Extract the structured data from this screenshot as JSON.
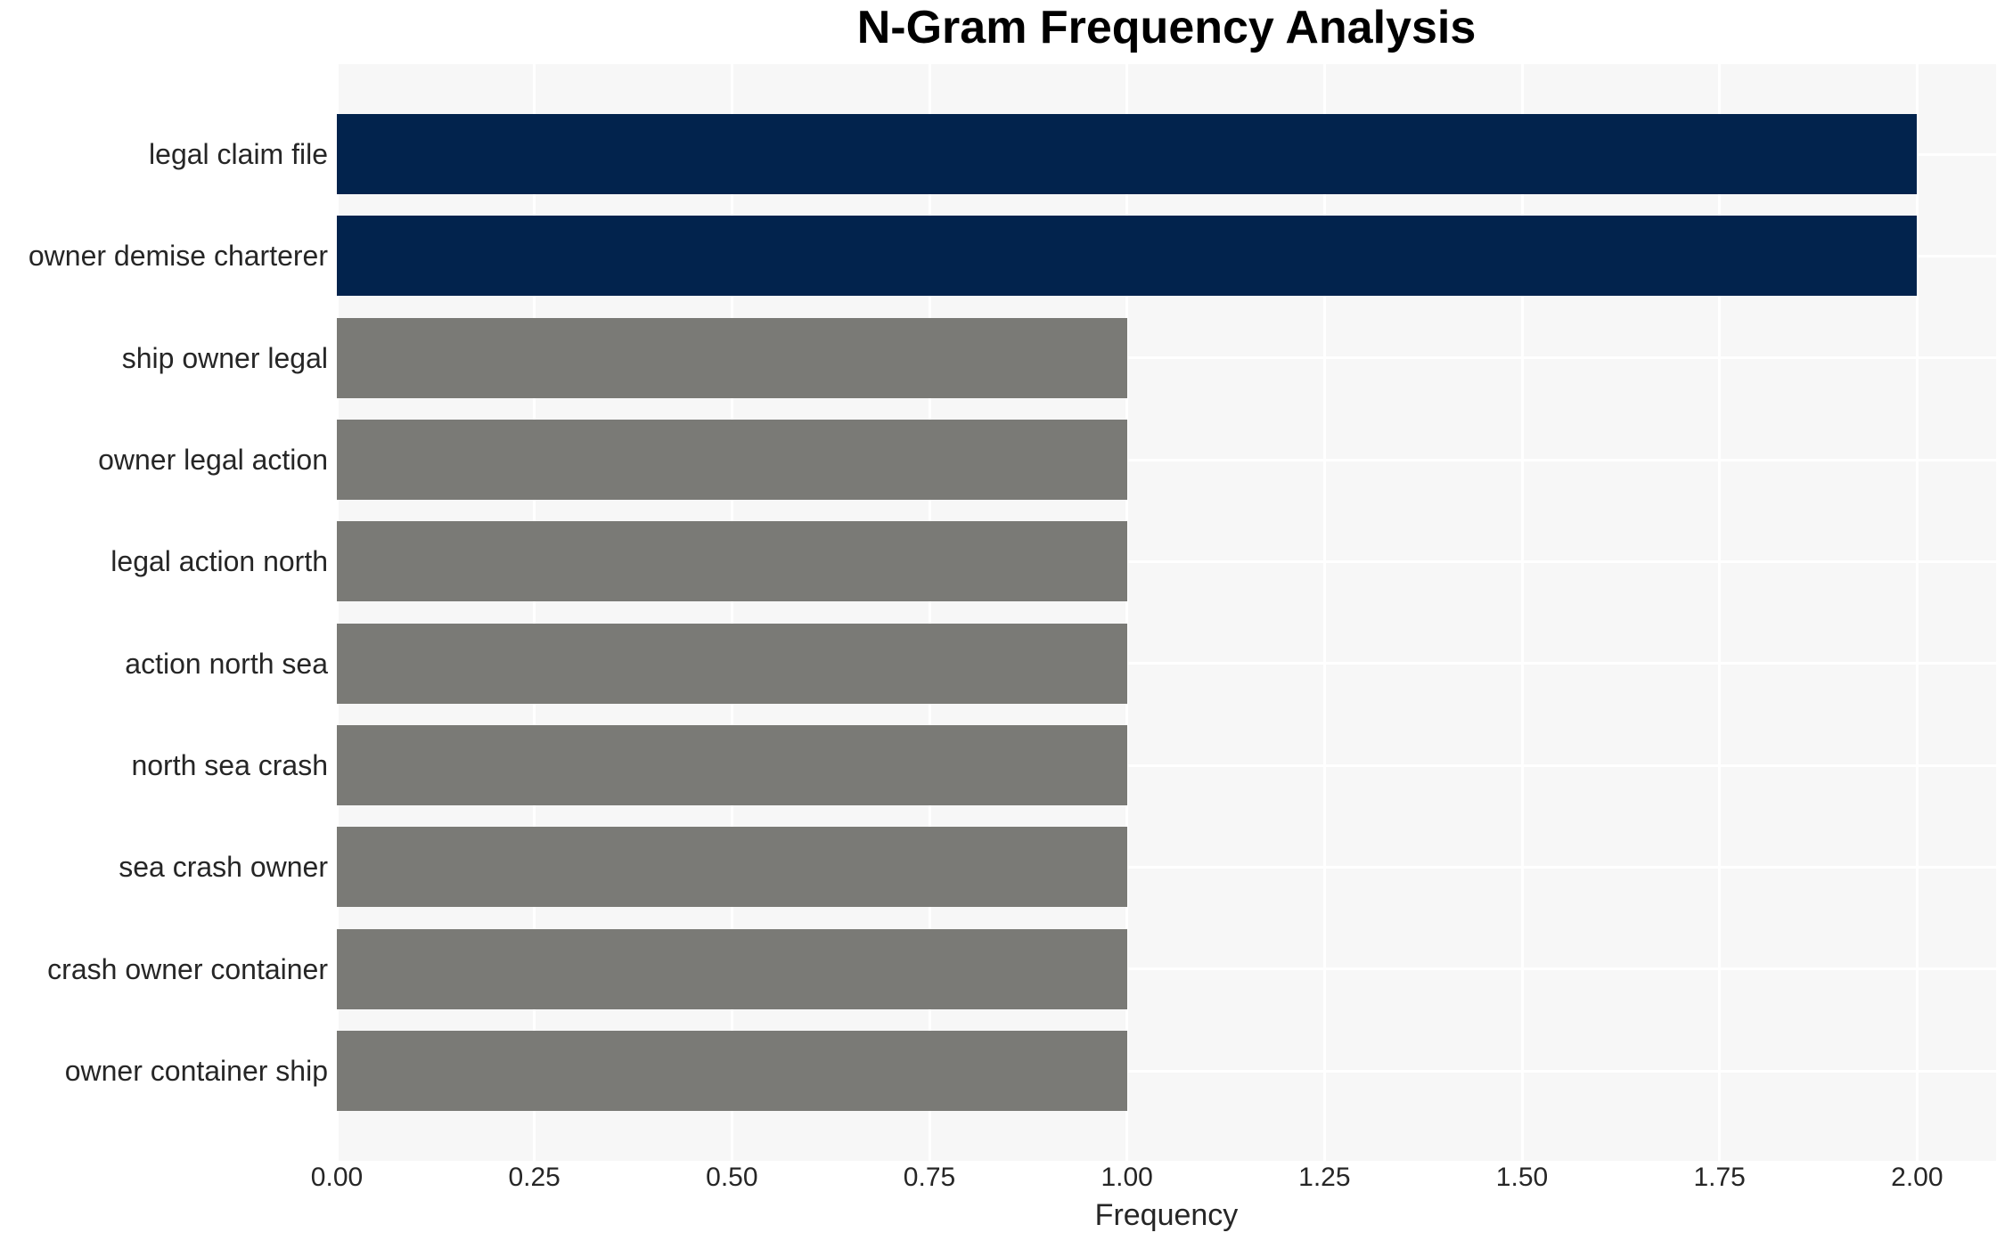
{
  "page": {
    "background": "#ffffff"
  },
  "chart_data": {
    "type": "bar",
    "orientation": "horizontal",
    "title": "N-Gram Frequency Analysis",
    "xlabel": "Frequency",
    "ylabel": "",
    "categories": [
      "legal claim file",
      "owner demise charterer",
      "ship owner legal",
      "owner legal action",
      "legal action north",
      "action north sea",
      "north sea crash",
      "sea crash owner",
      "crash owner container",
      "owner container ship"
    ],
    "values": [
      2,
      2,
      1,
      1,
      1,
      1,
      1,
      1,
      1,
      1
    ],
    "bar_colors": [
      "#02234d",
      "#02234d",
      "#7a7a76",
      "#7a7a76",
      "#7a7a76",
      "#7a7a76",
      "#7a7a76",
      "#7a7a76",
      "#7a7a76",
      "#7a7a76"
    ],
    "xlim": [
      0,
      2.1
    ],
    "xticks": [
      0,
      0.25,
      0.5,
      0.75,
      1,
      1.25,
      1.5,
      1.75,
      2
    ],
    "xtick_labels": [
      "0.00",
      "0.25",
      "0.50",
      "0.75",
      "1.00",
      "1.25",
      "1.50",
      "1.75",
      "2.00"
    ],
    "grid": true,
    "legend": false,
    "colors": {
      "accent_dark": "#02234d",
      "accent_gray": "#7a7a76",
      "plot_background": "#f7f7f7",
      "grid_color": "#ffffff",
      "text_color": "#262626",
      "title_color": "#000000"
    }
  }
}
